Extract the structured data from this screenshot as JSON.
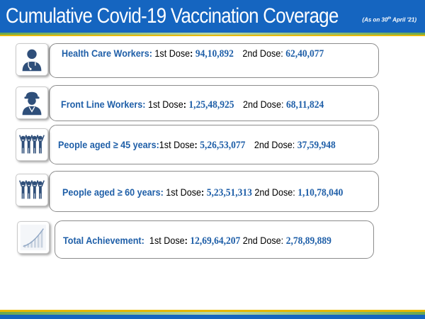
{
  "header": {
    "title": "Cumulative Covid-19 Vaccination Coverage",
    "note_prefix": "(As on 30",
    "note_sup": "th",
    "note_suffix": " April '21)"
  },
  "rows": [
    {
      "category": "Health Care Workers:",
      "first_label": "1st Dose",
      "first_sep": ": ",
      "first_value": "94,10,892",
      "second_label": "2nd Dose: ",
      "second_value": "62,40,077",
      "icon": "health-worker-icon"
    },
    {
      "category": "Front Line Workers:",
      "first_label": "1st Dose",
      "first_sep": ": ",
      "first_value": "1,25,48,925",
      "second_label": "2nd Dose: ",
      "second_value": "68,11,824",
      "icon": "frontline-worker-icon"
    },
    {
      "category": "People aged ≥ 45 years:",
      "first_label": "1st Dose",
      "first_sep": ": ",
      "first_value": "5,26,53,077",
      "second_label": "2nd Dose: ",
      "second_value": "37,59,948",
      "icon": "people-group-icon"
    },
    {
      "category": "People aged ≥ 60 years:",
      "first_label": "1st Dose",
      "first_sep": ": ",
      "first_value": "5,23,51,313",
      "second_label": "2nd Dose: ",
      "second_value": "1,10,78,040",
      "icon": "people-group-icon"
    },
    {
      "category": "Total Achievement:",
      "first_label": "1st Dose",
      "first_sep": ": ",
      "first_value": "12,69,64,207",
      "second_label": "2nd Dose: ",
      "second_value": "2,78,89,889",
      "icon": "growth-chart-icon"
    }
  ],
  "colors": {
    "header_blue": "#1565c0",
    "label_blue": "#1f5fa8",
    "accent_gold": "#e6b800",
    "accent_green": "#6aa84f"
  }
}
